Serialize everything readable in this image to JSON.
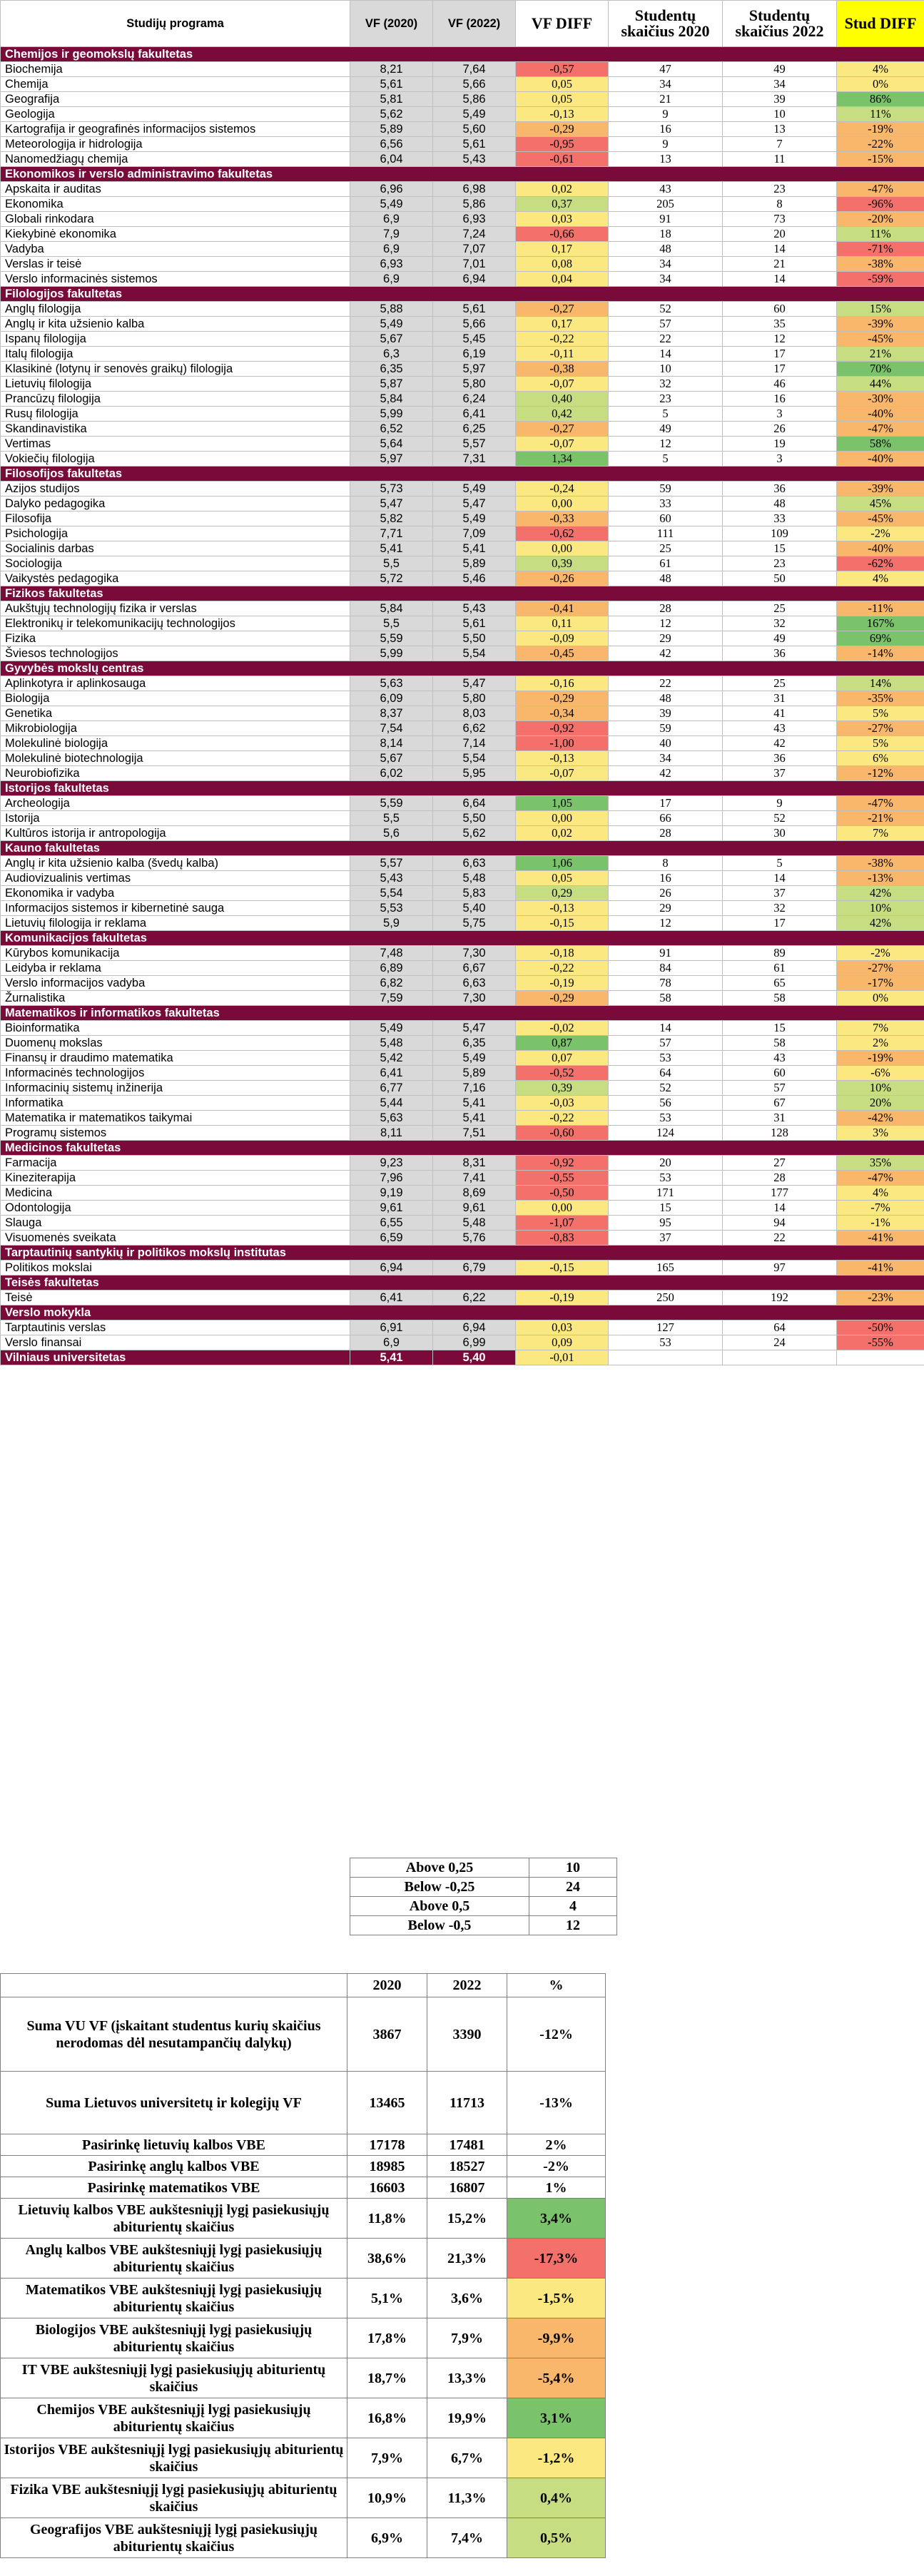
{
  "header": {
    "program": "Studijų programa",
    "vf2020": "VF (2020)",
    "vf2022": "VF (2022)",
    "vfdiff": "VF DIFF",
    "stud2020": "Studentų skaičius 2020",
    "stud2022": "Studentų skaičius 2022",
    "studdiff": "Stud DIFF"
  },
  "colors": {
    "faculty_band": "#7a0a3a",
    "diff_strong_up": "#7ac36a",
    "diff_up": "#c6dd82",
    "diff_neutral": "#fbe880",
    "diff_down": "#f9b76b",
    "diff_strong_down": "#f4706b"
  },
  "sections": [
    {
      "faculty": "Chemijos ir geomokslų fakultetas",
      "rows": [
        [
          "Biochemija",
          "8,21",
          "7,64",
          "-0,57",
          "47",
          "49",
          "4%"
        ],
        [
          "Chemija",
          "5,61",
          "5,66",
          "0,05",
          "34",
          "34",
          "0%"
        ],
        [
          "Geografija",
          "5,81",
          "5,86",
          "0,05",
          "21",
          "39",
          "86%"
        ],
        [
          "Geologija",
          "5,62",
          "5,49",
          "-0,13",
          "9",
          "10",
          "11%"
        ],
        [
          "Kartografija ir geografinės informacijos sistemos",
          "5,89",
          "5,60",
          "-0,29",
          "16",
          "13",
          "-19%"
        ],
        [
          "Meteorologija ir hidrologija",
          "6,56",
          "5,61",
          "-0,95",
          "9",
          "7",
          "-22%"
        ],
        [
          "Nanomedžiagų chemija",
          "6,04",
          "5,43",
          "-0,61",
          "13",
          "11",
          "-15%"
        ]
      ]
    },
    {
      "faculty": "Ekonomikos ir verslo administravimo fakultetas",
      "rows": [
        [
          "Apskaita ir auditas",
          "6,96",
          "6,98",
          "0,02",
          "43",
          "23",
          "-47%"
        ],
        [
          "Ekonomika",
          "5,49",
          "5,86",
          "0,37",
          "205",
          "8",
          "-96%"
        ],
        [
          "Globali rinkodara",
          "6,9",
          "6,93",
          "0,03",
          "91",
          "73",
          "-20%"
        ],
        [
          "Kiekybinė ekonomika",
          "7,9",
          "7,24",
          "-0,66",
          "18",
          "20",
          "11%"
        ],
        [
          "Vadyba",
          "6,9",
          "7,07",
          "0,17",
          "48",
          "14",
          "-71%"
        ],
        [
          "Verslas ir teisė",
          "6,93",
          "7,01",
          "0,08",
          "34",
          "21",
          "-38%"
        ],
        [
          "Verslo informacinės sistemos",
          "6,9",
          "6,94",
          "0,04",
          "34",
          "14",
          "-59%"
        ]
      ]
    },
    {
      "faculty": "Filologijos fakultetas",
      "rows": [
        [
          "Anglų filologija",
          "5,88",
          "5,61",
          "-0,27",
          "52",
          "60",
          "15%"
        ],
        [
          "Anglų ir kita užsienio kalba",
          "5,49",
          "5,66",
          "0,17",
          "57",
          "35",
          "-39%"
        ],
        [
          "Ispanų filologija",
          "5,67",
          "5,45",
          "-0,22",
          "22",
          "12",
          "-45%"
        ],
        [
          "Italų filologija",
          "6,3",
          "6,19",
          "-0,11",
          "14",
          "17",
          "21%"
        ],
        [
          "Klasikinė (lotynų ir senovės graikų) filologija",
          "6,35",
          "5,97",
          "-0,38",
          "10",
          "17",
          "70%"
        ],
        [
          "Lietuvių filologija",
          "5,87",
          "5,80",
          "-0,07",
          "32",
          "46",
          "44%"
        ],
        [
          "Prancūzų filologija",
          "5,84",
          "6,24",
          "0,40",
          "23",
          "16",
          "-30%"
        ],
        [
          "Rusų filologija",
          "5,99",
          "6,41",
          "0,42",
          "5",
          "3",
          "-40%"
        ],
        [
          "Skandinavistika",
          "6,52",
          "6,25",
          "-0,27",
          "49",
          "26",
          "-47%"
        ],
        [
          "Vertimas",
          "5,64",
          "5,57",
          "-0,07",
          "12",
          "19",
          "58%"
        ],
        [
          "Vokiečių filologija",
          "5,97",
          "7,31",
          "1,34",
          "5",
          "3",
          "-40%"
        ]
      ]
    },
    {
      "faculty": "Filosofijos fakultetas",
      "rows": [
        [
          "Azijos studijos",
          "5,73",
          "5,49",
          "-0,24",
          "59",
          "36",
          "-39%"
        ],
        [
          "Dalyko pedagogika",
          "5,47",
          "5,47",
          "0,00",
          "33",
          "48",
          "45%"
        ],
        [
          "Filosofija",
          "5,82",
          "5,49",
          "-0,33",
          "60",
          "33",
          "-45%"
        ],
        [
          "Psichologija",
          "7,71",
          "7,09",
          "-0,62",
          "111",
          "109",
          "-2%"
        ],
        [
          "Socialinis darbas",
          "5,41",
          "5,41",
          "0,00",
          "25",
          "15",
          "-40%"
        ],
        [
          "Sociologija",
          "5,5",
          "5,89",
          "0,39",
          "61",
          "23",
          "-62%"
        ],
        [
          "Vaikystės pedagogika",
          "5,72",
          "5,46",
          "-0,26",
          "48",
          "50",
          "4%"
        ]
      ]
    },
    {
      "faculty": "Fizikos fakultetas",
      "rows": [
        [
          "Aukštųjų technologijų fizika ir verslas",
          "5,84",
          "5,43",
          "-0,41",
          "28",
          "25",
          "-11%"
        ],
        [
          "Elektronikų ir telekomunikacijų technologijos",
          "5,5",
          "5,61",
          "0,11",
          "12",
          "32",
          "167%"
        ],
        [
          "Fizika",
          "5,59",
          "5,50",
          "-0,09",
          "29",
          "49",
          "69%"
        ],
        [
          "Šviesos technologijos",
          "5,99",
          "5,54",
          "-0,45",
          "42",
          "36",
          "-14%"
        ]
      ]
    },
    {
      "faculty": "Gyvybės mokslų centras",
      "rows": [
        [
          "Aplinkotyra ir aplinkosauga",
          "5,63",
          "5,47",
          "-0,16",
          "22",
          "25",
          "14%"
        ],
        [
          "Biologija",
          "6,09",
          "5,80",
          "-0,29",
          "48",
          "31",
          "-35%"
        ],
        [
          "Genetika",
          "8,37",
          "8,03",
          "-0,34",
          "39",
          "41",
          "5%"
        ],
        [
          "Mikrobiologija",
          "7,54",
          "6,62",
          "-0,92",
          "59",
          "43",
          "-27%"
        ],
        [
          "Molekulinė biologija",
          "8,14",
          "7,14",
          "-1,00",
          "40",
          "42",
          "5%"
        ],
        [
          "Molekulinė biotechnologija",
          "5,67",
          "5,54",
          "-0,13",
          "34",
          "36",
          "6%"
        ],
        [
          "Neurobiofizika",
          "6,02",
          "5,95",
          "-0,07",
          "42",
          "37",
          "-12%"
        ]
      ]
    },
    {
      "faculty": "Istorijos fakultetas",
      "rows": [
        [
          "Archeologija",
          "5,59",
          "6,64",
          "1,05",
          "17",
          "9",
          "-47%"
        ],
        [
          "Istorija",
          "5,5",
          "5,50",
          "0,00",
          "66",
          "52",
          "-21%"
        ],
        [
          "Kultūros istorija ir antropologija",
          "5,6",
          "5,62",
          "0,02",
          "28",
          "30",
          "7%"
        ]
      ]
    },
    {
      "faculty": "Kauno fakultetas",
      "rows": [
        [
          "Anglų ir kita užsienio kalba (švedų kalba)",
          "5,57",
          "6,63",
          "1,06",
          "8",
          "5",
          "-38%"
        ],
        [
          "Audiovizualinis vertimas",
          "5,43",
          "5,48",
          "0,05",
          "16",
          "14",
          "-13%"
        ],
        [
          "Ekonomika ir vadyba",
          "5,54",
          "5,83",
          "0,29",
          "26",
          "37",
          "42%"
        ],
        [
          "Informacijos sistemos ir kibernetinė sauga",
          "5,53",
          "5,40",
          "-0,13",
          "29",
          "32",
          "10%"
        ],
        [
          "Lietuvių filologija ir reklama",
          "5,9",
          "5,75",
          "-0,15",
          "12",
          "17",
          "42%"
        ]
      ]
    },
    {
      "faculty": "Komunikacijos fakultetas",
      "rows": [
        [
          "Kūrybos komunikacija",
          "7,48",
          "7,30",
          "-0,18",
          "91",
          "89",
          "-2%"
        ],
        [
          "Leidyba ir reklama",
          "6,89",
          "6,67",
          "-0,22",
          "84",
          "61",
          "-27%"
        ],
        [
          "Verslo informacijos vadyba",
          "6,82",
          "6,63",
          "-0,19",
          "78",
          "65",
          "-17%"
        ],
        [
          "Žurnalistika",
          "7,59",
          "7,30",
          "-0,29",
          "58",
          "58",
          "0%"
        ]
      ]
    },
    {
      "faculty": "Matematikos ir informatikos fakultetas",
      "rows": [
        [
          "Bioinformatika",
          "5,49",
          "5,47",
          "-0,02",
          "14",
          "15",
          "7%"
        ],
        [
          "Duomenų mokslas",
          "5,48",
          "6,35",
          "0,87",
          "57",
          "58",
          "2%"
        ],
        [
          "Finansų ir draudimo matematika",
          "5,42",
          "5,49",
          "0,07",
          "53",
          "43",
          "-19%"
        ],
        [
          "Informacinės technologijos",
          "6,41",
          "5,89",
          "-0,52",
          "64",
          "60",
          "-6%"
        ],
        [
          "Informacinių sistemų inžinerija",
          "6,77",
          "7,16",
          "0,39",
          "52",
          "57",
          "10%"
        ],
        [
          "Informatika",
          "5,44",
          "5,41",
          "-0,03",
          "56",
          "67",
          "20%"
        ],
        [
          "Matematika ir matematikos taikymai",
          "5,63",
          "5,41",
          "-0,22",
          "53",
          "31",
          "-42%"
        ],
        [
          "Programų sistemos",
          "8,11",
          "7,51",
          "-0,60",
          "124",
          "128",
          "3%"
        ]
      ]
    },
    {
      "faculty": "Medicinos fakultetas",
      "rows": [
        [
          "Farmacija",
          "9,23",
          "8,31",
          "-0,92",
          "20",
          "27",
          "35%"
        ],
        [
          "Kineziterapija",
          "7,96",
          "7,41",
          "-0,55",
          "53",
          "28",
          "-47%"
        ],
        [
          "Medicina",
          "9,19",
          "8,69",
          "-0,50",
          "171",
          "177",
          "4%"
        ],
        [
          "Odontologija",
          "9,61",
          "9,61",
          "0,00",
          "15",
          "14",
          "-7%"
        ],
        [
          "Slauga",
          "6,55",
          "5,48",
          "-1,07",
          "95",
          "94",
          "-1%"
        ],
        [
          "Visuomenės sveikata",
          "6,59",
          "5,76",
          "-0,83",
          "37",
          "22",
          "-41%"
        ]
      ]
    },
    {
      "faculty": "Tarptautinių santykių ir politikos mokslų institutas",
      "rows": [
        [
          "Politikos mokslai",
          "6,94",
          "6,79",
          "-0,15",
          "165",
          "97",
          "-41%"
        ]
      ]
    },
    {
      "faculty": "Teisės fakultetas",
      "rows": [
        [
          "Teisė",
          "6,41",
          "6,22",
          "-0,19",
          "250",
          "192",
          "-23%"
        ]
      ]
    },
    {
      "faculty": "Verslo mokykla",
      "rows": [
        [
          "Tarptautinis verslas",
          "6,91",
          "6,94",
          "0,03",
          "127",
          "64",
          "-50%"
        ],
        [
          "Verslo finansai",
          "6,9",
          "6,99",
          "0,09",
          "53",
          "24",
          "-55%"
        ]
      ]
    }
  ],
  "total": {
    "label": "Vilniaus universitetas",
    "vf2020": "5,41",
    "vf2022": "5,40",
    "diff": "-0,01"
  },
  "thresholds": [
    {
      "label": "Above 0,25",
      "value": "10"
    },
    {
      "label": "Below -0,25",
      "value": "24"
    },
    {
      "label": "Above 0,5",
      "value": "4"
    },
    {
      "label": "Below -0,5",
      "value": "12"
    }
  ],
  "summary": {
    "headers": [
      "",
      "2020",
      "2022",
      "%"
    ],
    "rows": [
      {
        "label": "Suma VU VF (įskaitant studentus kurių skaičius nerodomas dėl nesutampančių dalykų)",
        "a": "3867",
        "b": "3390",
        "c": "-12%",
        "h": 104,
        "cls": "none"
      },
      {
        "label": "Suma Lietuvos universitetų ir kolegijų VF",
        "a": "13465",
        "b": "11713",
        "c": "-13%",
        "h": 88,
        "cls": "none"
      },
      {
        "label": "Pasirinkę lietuvių kalbos VBE",
        "a": "17178",
        "b": "17481",
        "c": "2%",
        "h": 30,
        "cls": "none"
      },
      {
        "label": "Pasirinkę anglų kalbos VBE",
        "a": "18985",
        "b": "18527",
        "c": "-2%",
        "h": 30,
        "cls": "none"
      },
      {
        "label": "Pasirinkę matematikos VBE",
        "a": "16603",
        "b": "16807",
        "c": "1%",
        "h": 30,
        "cls": "none"
      },
      {
        "label": "Lietuvių kalbos VBE aukštesniųjį lygį pasiekusiųjų abiturientų skaičius",
        "a": "11,8%",
        "b": "15,2%",
        "c": "3,4%",
        "h": 56,
        "cls": "strong_up"
      },
      {
        "label": "Anglų kalbos VBE aukštesniųjį lygį pasiekusiųjų abiturientų skaičius",
        "a": "38,6%",
        "b": "21,3%",
        "c": "-17,3%",
        "h": 56,
        "cls": "strong_down"
      },
      {
        "label": "Matematikos VBE aukštesniųjį lygį pasiekusiųjų abiturientų skaičius",
        "a": "5,1%",
        "b": "3,6%",
        "c": "-1,5%",
        "h": 56,
        "cls": "neutral"
      },
      {
        "label": "Biologijos VBE aukštesniųjį lygį pasiekusiųjų abiturientų skaičius",
        "a": "17,8%",
        "b": "7,9%",
        "c": "-9,9%",
        "h": 56,
        "cls": "down"
      },
      {
        "label": "IT VBE aukštesniųjį lygį pasiekusiųjų abiturientų skaičius",
        "a": "18,7%",
        "b": "13,3%",
        "c": "-5,4%",
        "h": 56,
        "cls": "down"
      },
      {
        "label": "Chemijos VBE aukštesniųjį lygį pasiekusiųjų abiturientų skaičius",
        "a": "16,8%",
        "b": "19,9%",
        "c": "3,1%",
        "h": 56,
        "cls": "strong_up"
      },
      {
        "label": "Istorijos VBE aukštesniųjį lygį pasiekusiųjų abiturientų skaičius",
        "a": "7,9%",
        "b": "6,7%",
        "c": "-1,2%",
        "h": 56,
        "cls": "neutral"
      },
      {
        "label": "Fizika VBE aukštesniųjį lygį pasiekusiųjų abiturientų skaičius",
        "a": "10,9%",
        "b": "11,3%",
        "c": "0,4%",
        "h": 56,
        "cls": "up"
      },
      {
        "label": "Geografijos VBE aukštesniųjį lygį pasiekusiųjų abiturientų skaičius",
        "a": "6,9%",
        "b": "7,4%",
        "c": "0,5%",
        "h": 56,
        "cls": "up"
      }
    ]
  }
}
